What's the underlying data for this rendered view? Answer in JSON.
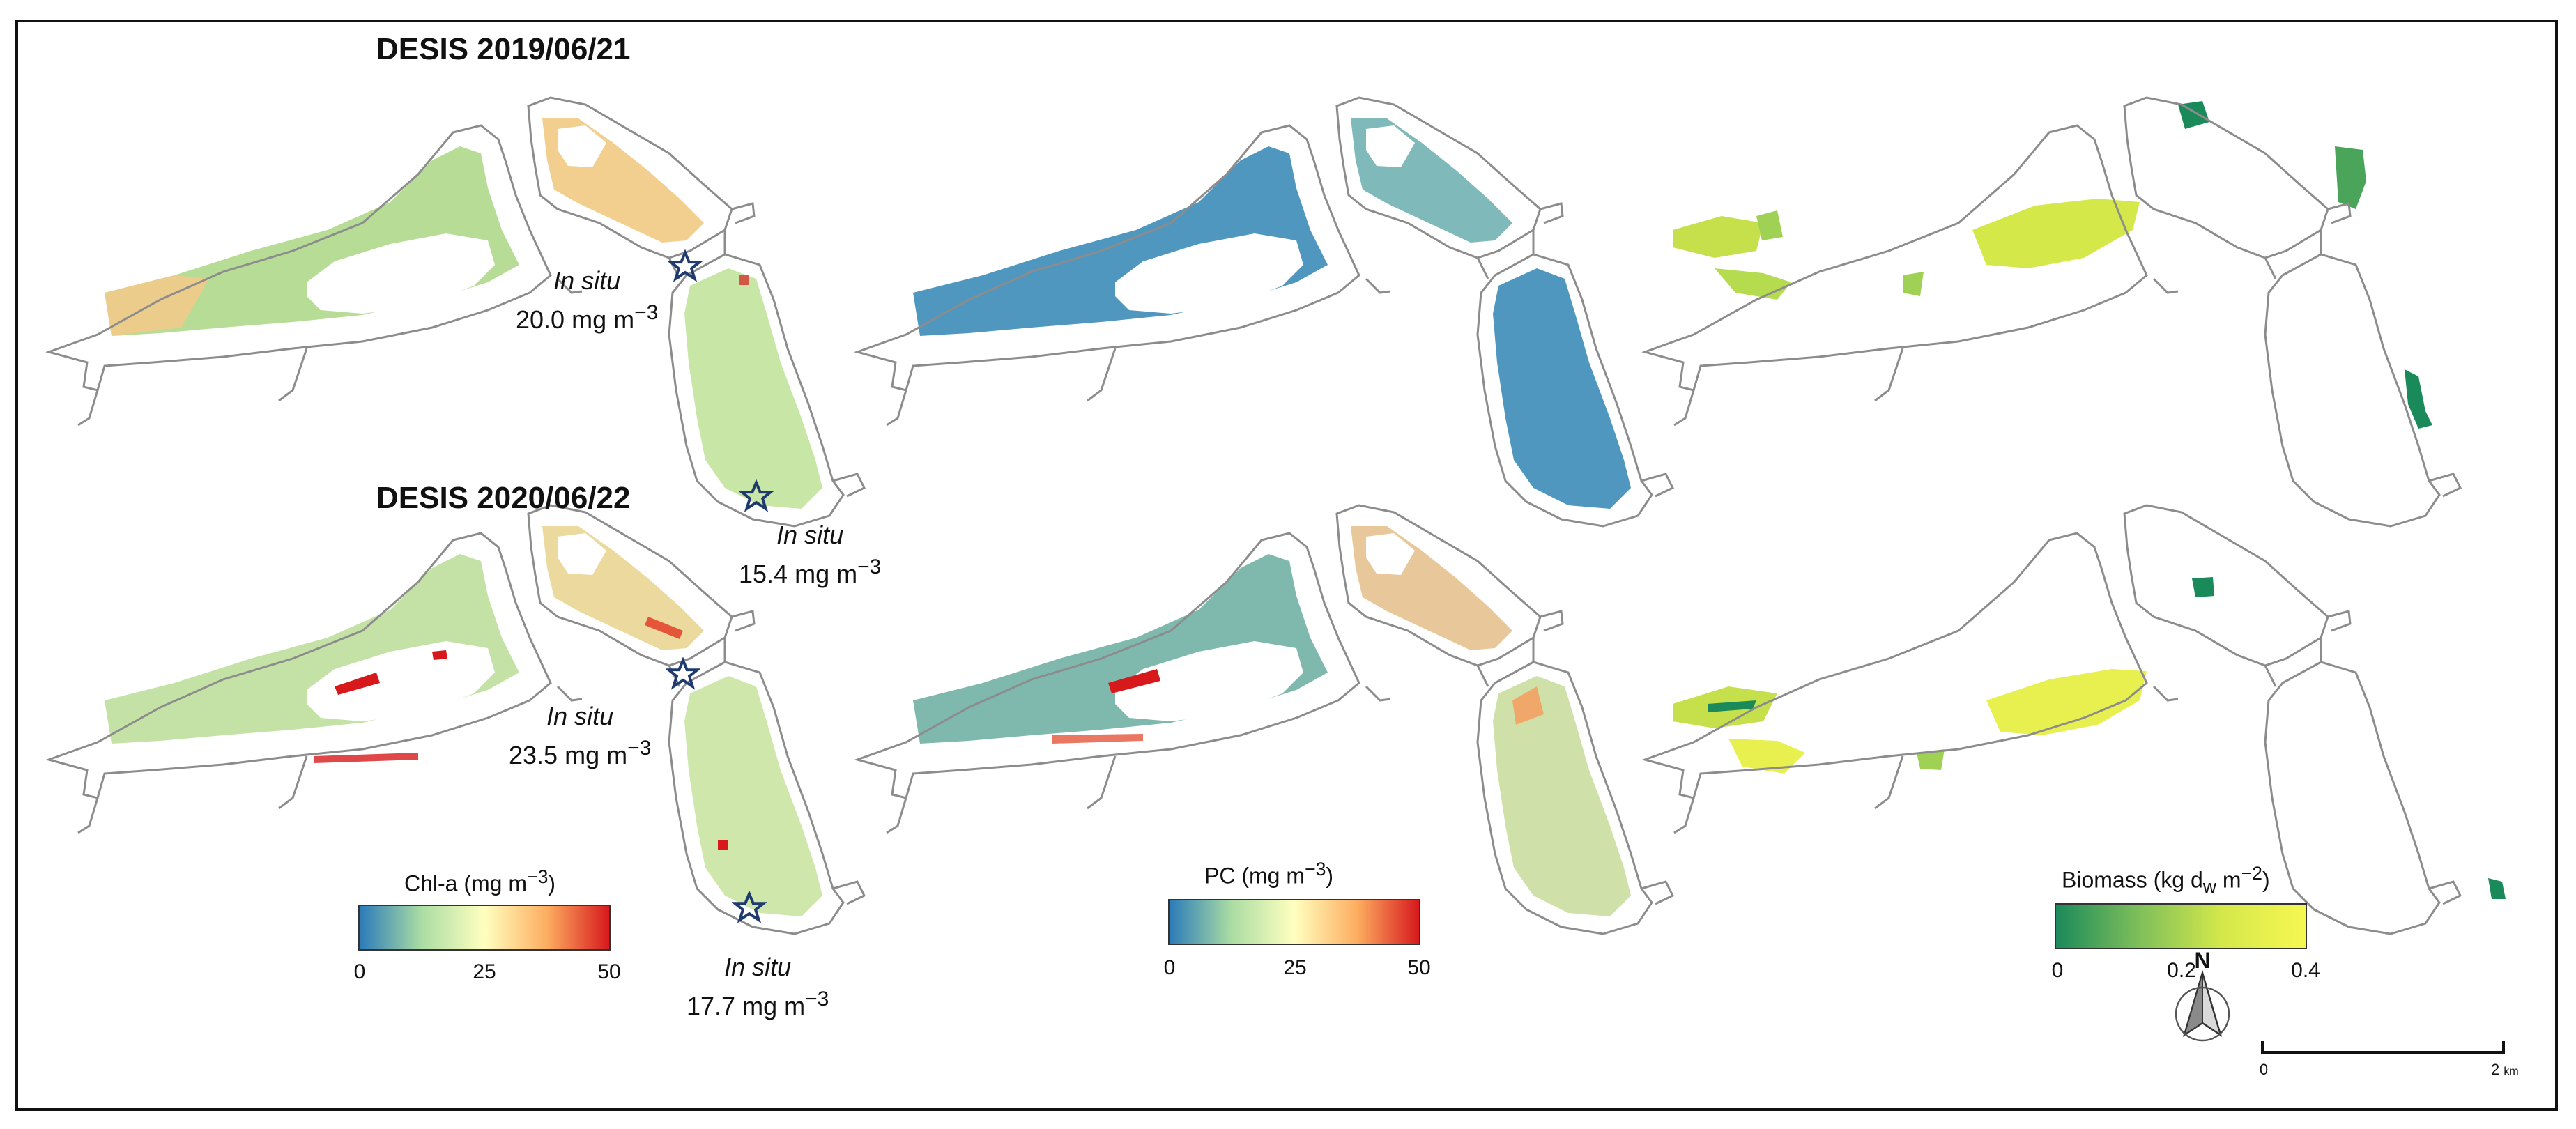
{
  "panels": {
    "row1_title": "DESIS 2019/06/21",
    "row2_title": "DESIS 2020/06/22"
  },
  "in_situ": [
    {
      "label": "In situ",
      "value": "20.0",
      "unit": "mg m",
      "exp": "−3"
    },
    {
      "label": "In situ",
      "value": "15.4",
      "unit": "mg m",
      "exp": "−3"
    },
    {
      "label": "In situ",
      "value": "23.5",
      "unit": "mg m",
      "exp": "−3"
    },
    {
      "label": "In situ",
      "value": "17.7",
      "unit": "mg m",
      "exp": "−3"
    }
  ],
  "legends": {
    "chla": {
      "title": "Chl-a (mg  m",
      "exp": "−3",
      "close": ")",
      "ticks": [
        "0",
        "25",
        "50"
      ],
      "colors": [
        "#2b7bb9",
        "#abdda4",
        "#ffffbf",
        "#fdae61",
        "#d7191c"
      ]
    },
    "pc": {
      "title": "PC (mg m",
      "exp": "−3",
      "close": ")",
      "ticks": [
        "0",
        "25",
        "50"
      ],
      "colors": [
        "#2b7bb9",
        "#abdda4",
        "#ffffbf",
        "#fdae61",
        "#d7191c"
      ]
    },
    "biomass": {
      "title_a": "Biomass (kg d",
      "sub": "w",
      "title_b": " m",
      "exp": "−2",
      "close": ")",
      "ticks": [
        "0",
        "0.2",
        "0.4"
      ],
      "colors": [
        "#1b8a5a",
        "#7fbf5a",
        "#d4e84a",
        "#f7f751"
      ]
    }
  },
  "north_arrow": {
    "label": "N"
  },
  "scale_bar": {
    "start": "0",
    "end": "2",
    "unit": "km"
  },
  "colors": {
    "lake_outline": "#8c8c8c",
    "chla_fill": "#b7dc95",
    "chla_warm": "#f5c98a",
    "pc_fill": "#4f97bf",
    "pc_warm": "#b7dc95",
    "biomass_fill": "#c5e04a",
    "biomass_dark": "#2f9a5a",
    "hotspot": "#d7191c",
    "star": "#1f3a6e"
  }
}
